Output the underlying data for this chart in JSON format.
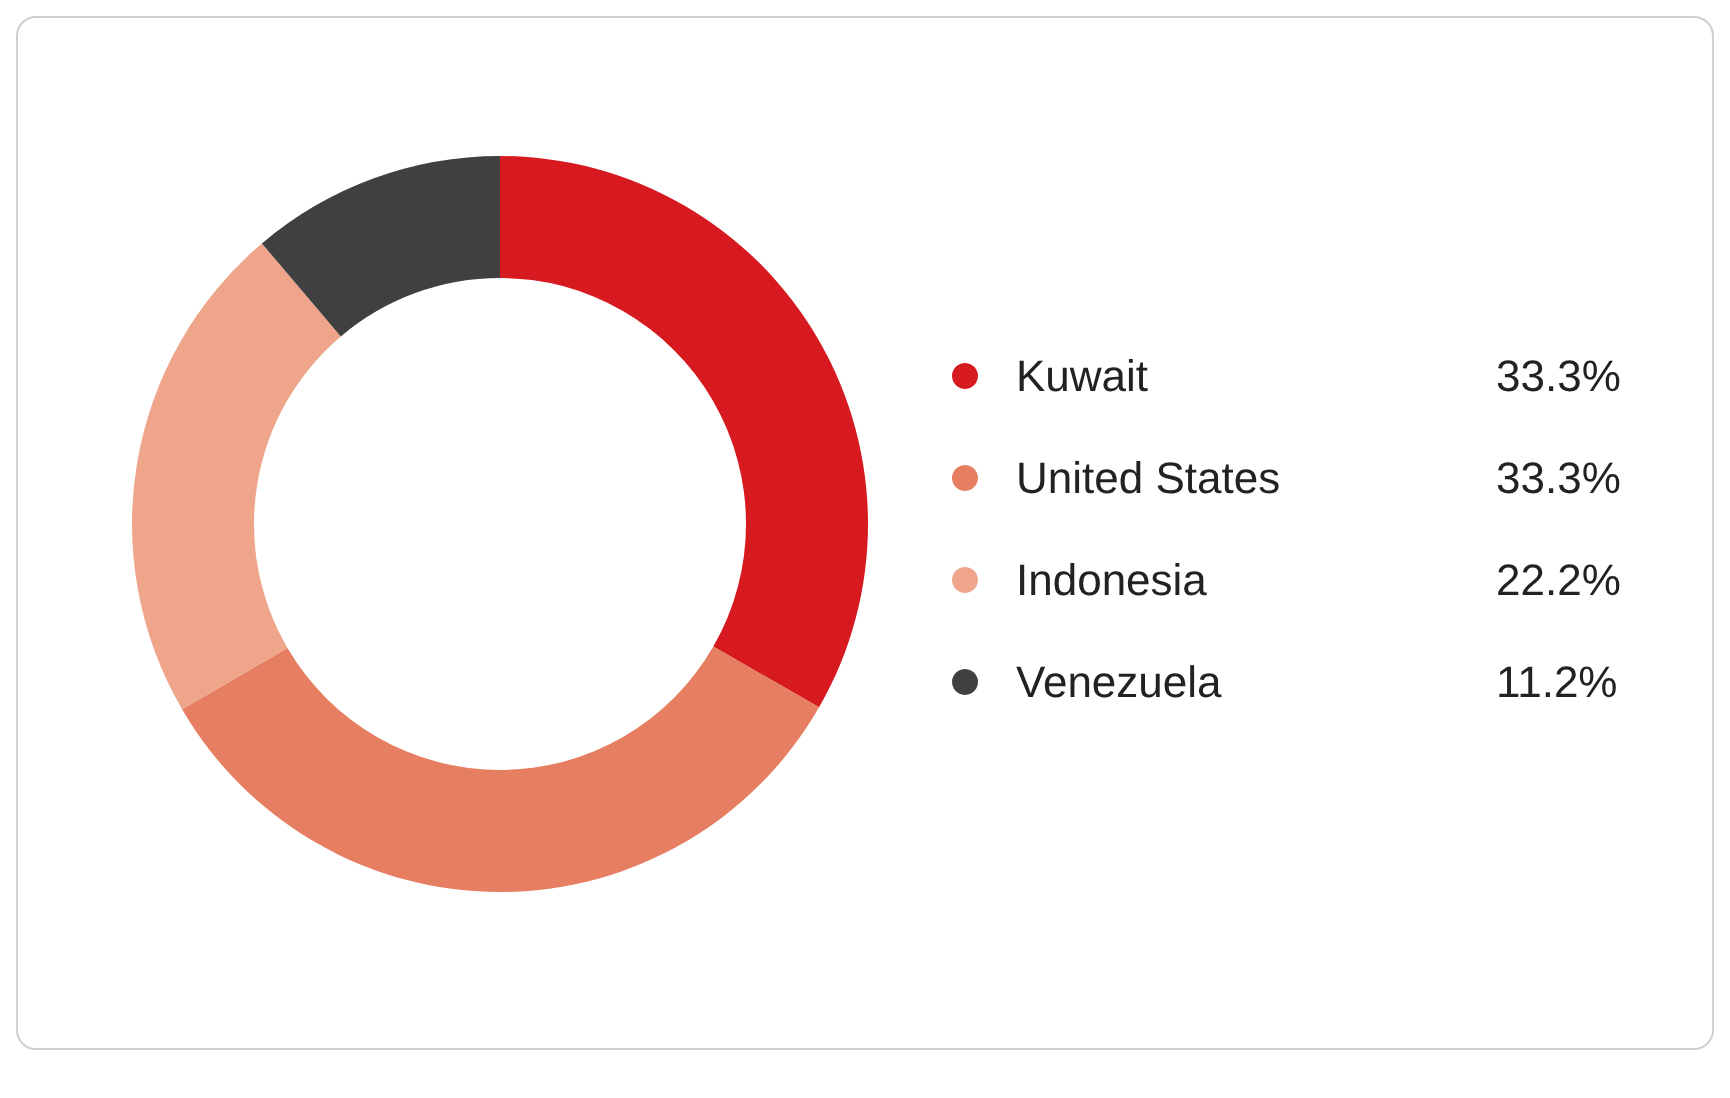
{
  "chart_data": {
    "type": "donut",
    "categories": [
      "Kuwait",
      "United States",
      "Indonesia",
      "Venezuela"
    ],
    "values": [
      33.3,
      33.3,
      22.2,
      11.2
    ],
    "colors": [
      "#d71920",
      "#e67e61",
      "#eea58a",
      "#404041"
    ],
    "legend": "right",
    "value_labels": [
      "33.3%",
      "33.3%",
      "22.2%",
      "11.2%"
    ]
  }
}
